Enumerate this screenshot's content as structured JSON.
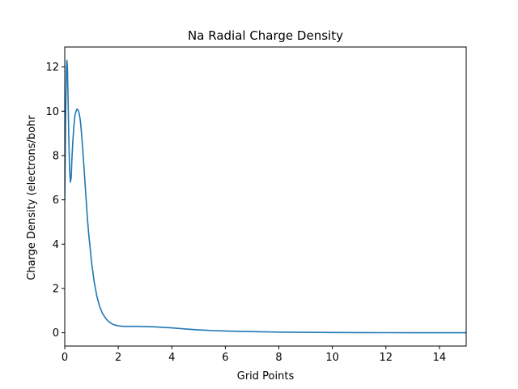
{
  "chart_data": {
    "type": "line",
    "title": "Na Radial Charge Density",
    "xlabel": "Grid Points",
    "ylabel": "Charge Density (electrons/bohr",
    "xlim": [
      0,
      15
    ],
    "ylim": [
      -0.6,
      12.9
    ],
    "xticks": [
      0,
      2,
      4,
      6,
      8,
      10,
      12,
      14
    ],
    "yticks": [
      0,
      2,
      4,
      6,
      8,
      10,
      12
    ],
    "grid": false,
    "legend": "none",
    "series": [
      {
        "color": "#1f77b4",
        "x": [
          0.0,
          0.03,
          0.06,
          0.08,
          0.1,
          0.12,
          0.15,
          0.18,
          0.21,
          0.24,
          0.27,
          0.3,
          0.34,
          0.38,
          0.42,
          0.46,
          0.5,
          0.54,
          0.58,
          0.62,
          0.66,
          0.7,
          0.75,
          0.8,
          0.85,
          0.9,
          1.0,
          1.1,
          1.2,
          1.3,
          1.4,
          1.5,
          1.6,
          1.7,
          1.8,
          1.9,
          2.0,
          2.1,
          2.2,
          2.3,
          2.5,
          2.7,
          3.0,
          3.3,
          3.6,
          4.0,
          4.5,
          5.0,
          5.5,
          6.0,
          7.0,
          8.0,
          9.0,
          10.0,
          11.0,
          12.0,
          13.0,
          14.0,
          15.0
        ],
        "y": [
          6.0,
          9.5,
          11.8,
          12.3,
          12.0,
          10.8,
          8.9,
          7.4,
          6.8,
          7.0,
          7.9,
          8.6,
          9.3,
          9.8,
          10.0,
          10.1,
          10.05,
          9.9,
          9.6,
          9.1,
          8.5,
          7.8,
          6.9,
          6.0,
          5.1,
          4.4,
          3.2,
          2.3,
          1.65,
          1.2,
          0.9,
          0.7,
          0.55,
          0.45,
          0.38,
          0.34,
          0.31,
          0.3,
          0.29,
          0.29,
          0.29,
          0.29,
          0.28,
          0.27,
          0.25,
          0.22,
          0.17,
          0.13,
          0.1,
          0.08,
          0.05,
          0.03,
          0.02,
          0.012,
          0.007,
          0.004,
          0.003,
          0.002,
          0.001
        ]
      }
    ]
  }
}
